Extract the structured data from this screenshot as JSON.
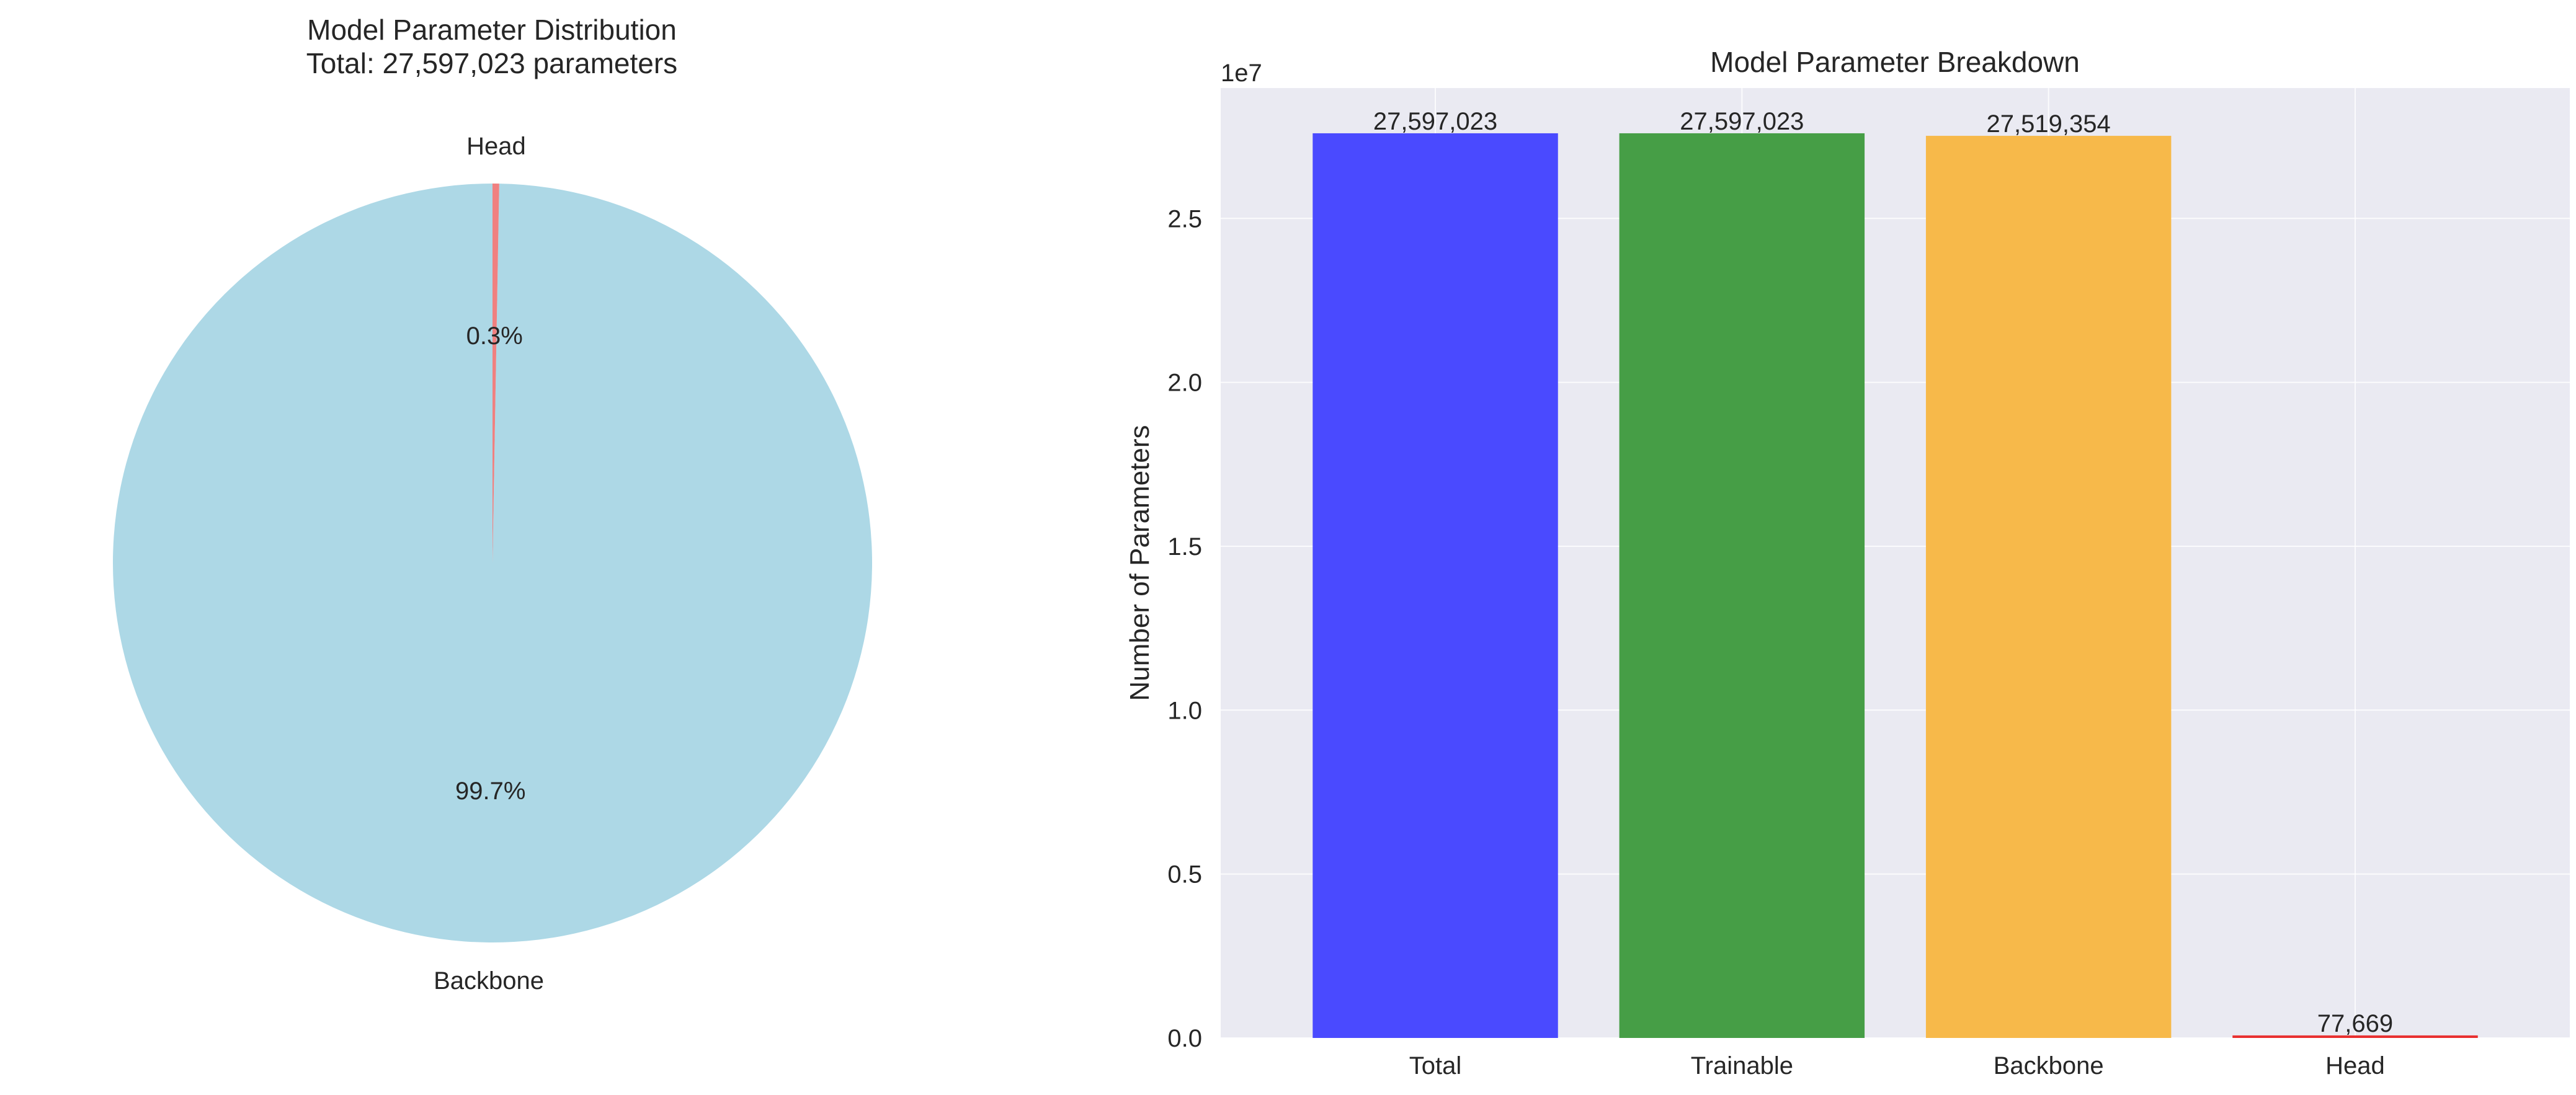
{
  "chart_data": [
    {
      "type": "pie",
      "title": "Model Parameter Distribution",
      "subtitle": "Total: 27,597,023 parameters",
      "slices": [
        {
          "label": "Backbone",
          "value": 27519354,
          "pct_label": "99.7%",
          "color": "#add8e6"
        },
        {
          "label": "Head",
          "value": 77669,
          "pct_label": "0.3%",
          "color": "#f08080"
        }
      ],
      "start_angle": 90
    },
    {
      "type": "bar",
      "title": "Model Parameter Breakdown",
      "ylabel": "Number of Parameters",
      "xlabel": "",
      "offset_label": "1e7",
      "categories": [
        "Total",
        "Trainable",
        "Backbone",
        "Head"
      ],
      "values": [
        27597023,
        27597023,
        27519354,
        77669
      ],
      "value_labels": [
        "27,597,023",
        "27,597,023",
        "27,519,354",
        "77,669"
      ],
      "colors": [
        "#4a4aff",
        "#469e46",
        "#f7b94a",
        "#e83030"
      ],
      "ylim": [
        0,
        28976874
      ],
      "yticks": [
        0,
        5000000,
        10000000,
        15000000,
        20000000,
        25000000
      ],
      "ytick_labels": [
        "0.0",
        "0.5",
        "1.0",
        "1.5",
        "2.0",
        "2.5"
      ],
      "grid": true,
      "background": "#eaeaf2"
    }
  ]
}
